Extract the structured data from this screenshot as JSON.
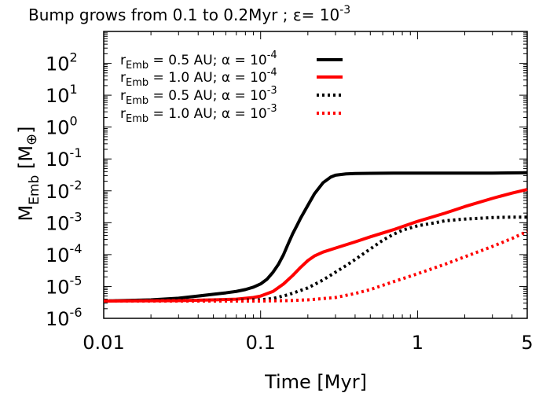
{
  "chart_data": {
    "type": "line",
    "title": {
      "main": "Bump grows from 0.1 to 0.2Myr ; ε= 10",
      "exp": "-3"
    },
    "xlabel": "Time [Myr]",
    "ylabel": {
      "main": "M",
      "sub": "Emb",
      "unit_open": " [M",
      "unit_sym": "⊕",
      "unit_close": "]"
    },
    "x_scale": "log",
    "y_scale": "log",
    "xlim": [
      0.01,
      5
    ],
    "ylim": [
      1e-06,
      1000
    ],
    "x_ticks": [
      {
        "value": 0.01,
        "label": "0.01"
      },
      {
        "value": 0.1,
        "label": "0.1"
      },
      {
        "value": 1,
        "label": "1"
      },
      {
        "value": 5,
        "label": "5"
      }
    ],
    "y_ticks": [
      {
        "value": 1e-06,
        "base": "10",
        "exp": "-6"
      },
      {
        "value": 1e-05,
        "base": "10",
        "exp": "-5"
      },
      {
        "value": 0.0001,
        "base": "10",
        "exp": "-4"
      },
      {
        "value": 0.001,
        "base": "10",
        "exp": "-3"
      },
      {
        "value": 0.01,
        "base": "10",
        "exp": "-2"
      },
      {
        "value": 0.1,
        "base": "10",
        "exp": "-1"
      },
      {
        "value": 1,
        "base": "10",
        "exp": "0"
      },
      {
        "value": 10,
        "base": "10",
        "exp": "1"
      },
      {
        "value": 100,
        "base": "10",
        "exp": "2"
      }
    ],
    "grid": false,
    "legend_position": "top-left",
    "series": [
      {
        "label": {
          "pre": "r",
          "sub": "Emb",
          "mid": " = 0.5 AU; α = 10",
          "exp": "-4"
        },
        "color": "#000000",
        "dash": "solid",
        "x": [
          0.01,
          0.02,
          0.03,
          0.04,
          0.05,
          0.06,
          0.07,
          0.08,
          0.09,
          0.1,
          0.11,
          0.12,
          0.13,
          0.14,
          0.15,
          0.16,
          0.17,
          0.18,
          0.2,
          0.22,
          0.25,
          0.28,
          0.3,
          0.35,
          0.4,
          0.5,
          0.7,
          1,
          2,
          3,
          5
        ],
        "y": [
          3.5e-06,
          3.8e-06,
          4.3e-06,
          5e-06,
          5.7e-06,
          6.3e-06,
          7e-06,
          8e-06,
          9.5e-06,
          1.2e-05,
          1.7e-05,
          2.8e-05,
          5e-05,
          0.0001,
          0.00022,
          0.00045,
          0.0008,
          0.0014,
          0.0035,
          0.008,
          0.018,
          0.027,
          0.031,
          0.034,
          0.035,
          0.0355,
          0.036,
          0.036,
          0.036,
          0.036,
          0.037
        ]
      },
      {
        "label": {
          "pre": "r",
          "sub": "Emb",
          "mid": " = 1.0 AU; α = 10",
          "exp": "-4"
        },
        "color": "#ff0000",
        "dash": "solid",
        "x": [
          0.01,
          0.03,
          0.05,
          0.07,
          0.09,
          0.1,
          0.12,
          0.14,
          0.16,
          0.18,
          0.2,
          0.22,
          0.25,
          0.3,
          0.4,
          0.5,
          0.7,
          1,
          1.5,
          2,
          3,
          4,
          5
        ],
        "y": [
          3.5e-06,
          3.6e-06,
          3.8e-06,
          4e-06,
          4.5e-06,
          5e-06,
          7e-06,
          1.2e-05,
          2.2e-05,
          4e-05,
          6.5e-05,
          9e-05,
          0.00012,
          0.00016,
          0.00025,
          0.00036,
          0.0006,
          0.0011,
          0.002,
          0.0032,
          0.0058,
          0.0085,
          0.011
        ]
      },
      {
        "label": {
          "pre": "r",
          "sub": "Emb",
          "mid": " = 0.5 AU; α = 10",
          "exp": "-3"
        },
        "color": "#000000",
        "dash": "dotted",
        "x": [
          0.01,
          0.05,
          0.1,
          0.12,
          0.15,
          0.2,
          0.25,
          0.3,
          0.35,
          0.4,
          0.5,
          0.6,
          0.7,
          0.8,
          1,
          1.3,
          1.5,
          2,
          3,
          4,
          5
        ],
        "y": [
          3.5e-06,
          3.6e-06,
          3.8e-06,
          4.2e-06,
          5.5e-06,
          9e-06,
          1.6e-05,
          2.8e-05,
          4.5e-05,
          7e-05,
          0.00015,
          0.00028,
          0.00043,
          0.00058,
          0.0008,
          0.001,
          0.00115,
          0.0013,
          0.00145,
          0.0015,
          0.0015
        ]
      },
      {
        "label": {
          "pre": "r",
          "sub": "Emb",
          "mid": " = 1.0 AU; α = 10",
          "exp": "-3"
        },
        "color": "#ff0000",
        "dash": "dotted",
        "x": [
          0.01,
          0.05,
          0.1,
          0.15,
          0.2,
          0.3,
          0.4,
          0.5,
          0.7,
          1,
          1.5,
          2,
          3,
          4,
          5
        ],
        "y": [
          3.5e-06,
          3.5e-06,
          3.5e-06,
          3.6e-06,
          3.8e-06,
          4.5e-06,
          6e-06,
          8e-06,
          1.4e-05,
          2.5e-05,
          5e-05,
          8.5e-05,
          0.00018,
          0.00032,
          0.00053
        ]
      }
    ]
  }
}
